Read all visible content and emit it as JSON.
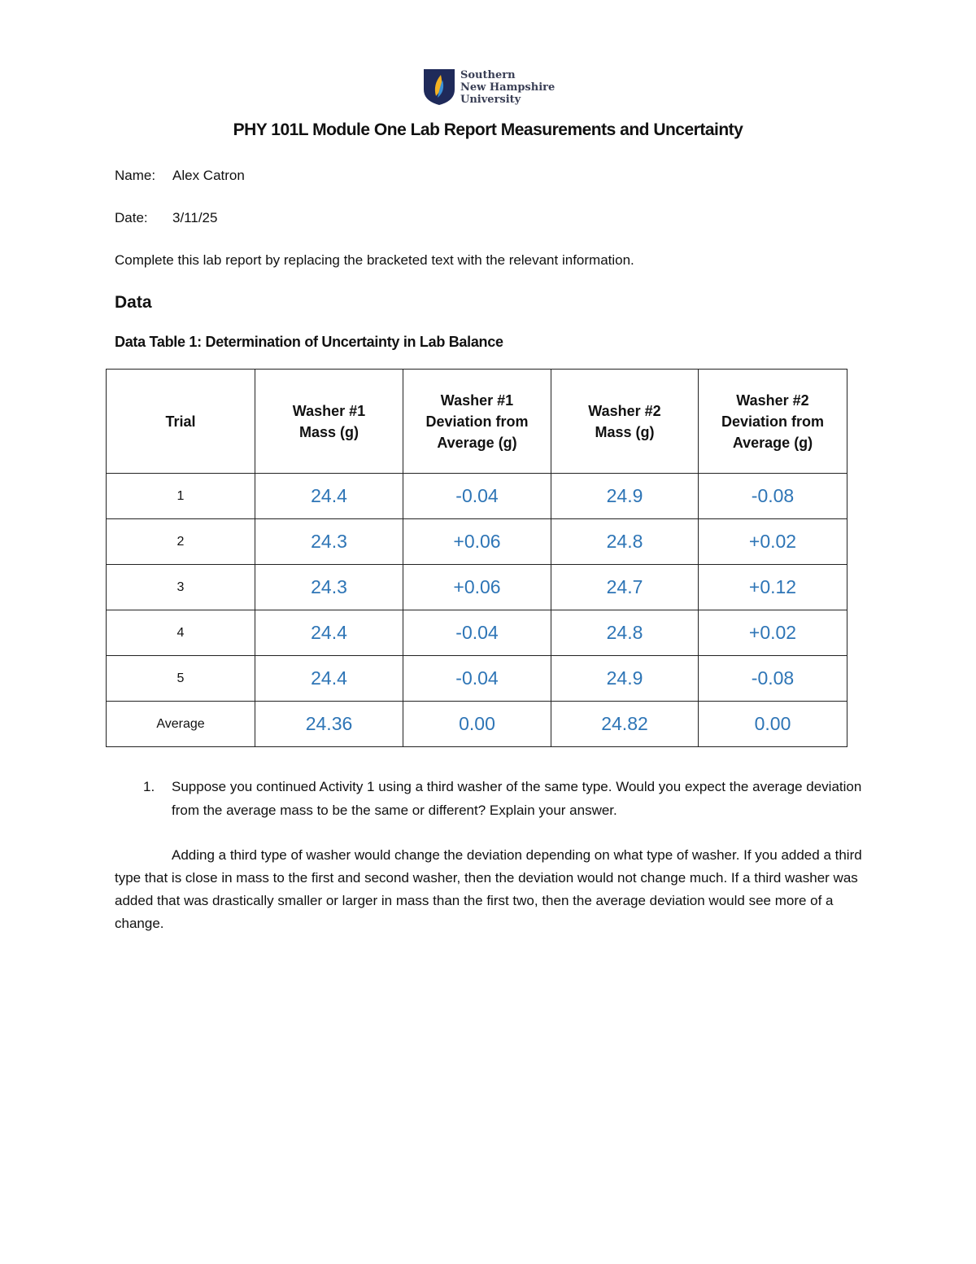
{
  "logo": {
    "lines": [
      "Southern",
      "New Hampshire",
      "University"
    ]
  },
  "title": "PHY 101L Module One Lab Report Measurements and Uncertainty",
  "name": {
    "label": "Name:",
    "value": "Alex Catron"
  },
  "date": {
    "label": "Date:",
    "value": "3/11/25"
  },
  "instructions": "Complete this lab report by replacing the bracketed text with the relevant information.",
  "section_heading": "Data",
  "table_caption": "Data Table 1: Determination of Uncertainty in Lab Balance",
  "table": {
    "headers": [
      "Trial",
      "Washer #1 Mass (g)",
      "Washer #1 Deviation from Average (g)",
      "Washer #2 Mass (g)",
      "Washer #2 Deviation from Average (g)"
    ],
    "rows": [
      [
        "1",
        "24.4",
        "-0.04",
        "24.9",
        "-0.08"
      ],
      [
        "2",
        "24.3",
        "+0.06",
        "24.8",
        "+0.02"
      ],
      [
        "3",
        "24.3",
        "+0.06",
        "24.7",
        "+0.12"
      ],
      [
        "4",
        "24.4",
        "-0.04",
        "24.8",
        "+0.02"
      ],
      [
        "5",
        "24.4",
        "-0.04",
        "24.9",
        "-0.08"
      ],
      [
        "Average",
        "24.36",
        "0.00",
        "24.82",
        "0.00"
      ]
    ]
  },
  "question": {
    "number": "1.",
    "text": "Suppose you continued Activity 1 using a third washer of the same type. Would you expect the average deviation from the average mass to be the same or different? Explain your answer."
  },
  "answer": "Adding a third type of washer would change the deviation depending on what type of washer. If you added a third type that is close in mass to the first and second washer, then the deviation would not change much. If a third washer was added that was drastically smaller or larger in mass than the first two, then the average deviation would see more of a change.",
  "colors": {
    "value_blue": "#2e75b6",
    "logo_navy": "#1f2a5a"
  }
}
